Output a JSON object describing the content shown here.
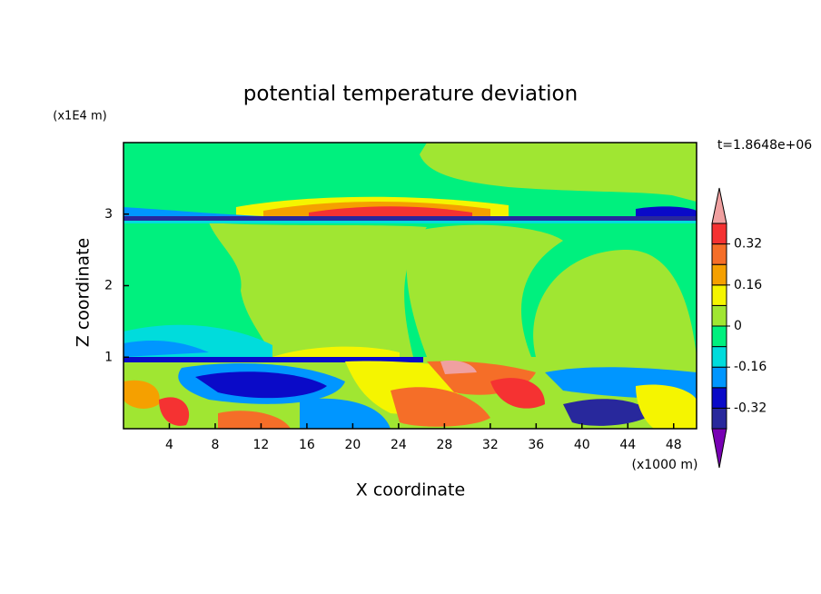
{
  "chart_data": {
    "type": "contour",
    "title": "potential temperature deviation",
    "xlabel": "X coordinate",
    "ylabel": "Z coordinate",
    "xunit": "(x1000 m)",
    "yunit": "(x1E4 m)",
    "time_label": "t=1.8648e+06",
    "xlim": [
      0,
      50
    ],
    "ylim": [
      0,
      4
    ],
    "xticks": [
      4,
      8,
      12,
      16,
      20,
      24,
      28,
      32,
      36,
      40,
      44,
      48
    ],
    "yticks": [
      1,
      2,
      3
    ],
    "levels": [
      -0.4,
      -0.32,
      -0.24,
      -0.16,
      -0.08,
      0,
      0.08,
      0.16,
      0.24,
      0.32,
      0.4
    ],
    "colorbar_ticks": [
      -0.32,
      -0.16,
      0,
      0.16,
      0.32
    ],
    "colors": [
      "#7800b4",
      "#28289c",
      "#0a0ac8",
      "#0096ff",
      "#00dcdc",
      "#00f07e",
      "#a0e632",
      "#f5f500",
      "#f5a000",
      "#f56e28",
      "#f53232",
      "#f0a0a0"
    ]
  }
}
